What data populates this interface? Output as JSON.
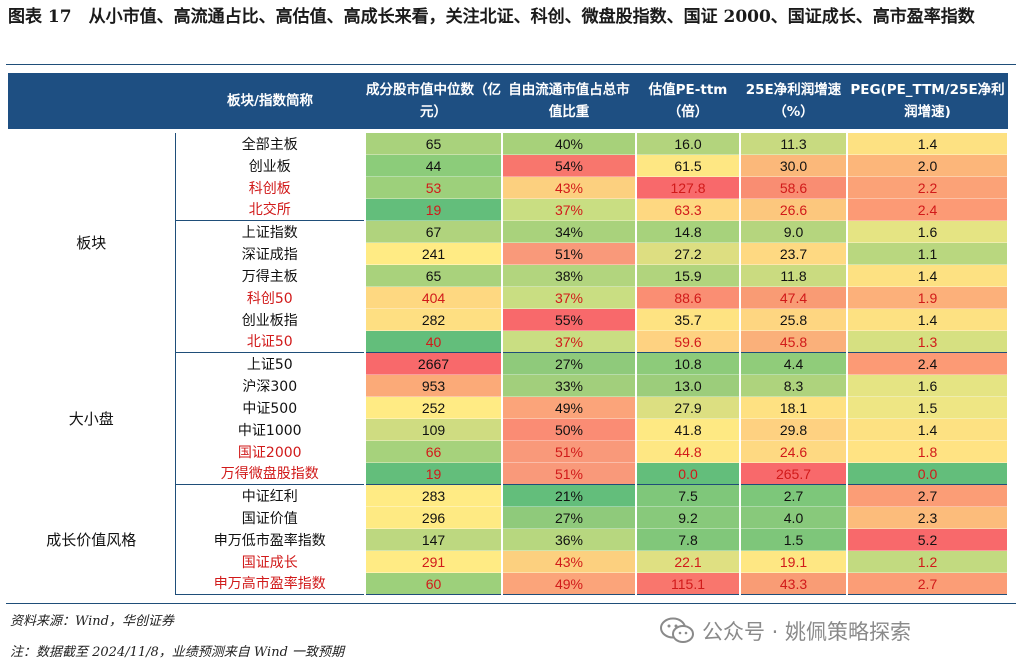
{
  "title": "图表 17　从小市值、高流通占比、高估值、高成长来看，关注北证、科创、微盘股指数、国证 2000、国证成长、高市盈率指数",
  "headers": [
    "",
    "板块/指数简称",
    "成分股市值中位数（亿元）",
    "自由流通市值占总市值比重",
    "估值PE-ttm（倍）",
    "25E净利润增速（%）",
    "PEG(PE_TTM/25E净利润增速)"
  ],
  "groups": [
    {
      "name": "板块",
      "rows": [
        {
          "name": "全部主板",
          "red": false,
          "mcap": "65",
          "float": "40%",
          "pe": "16.0",
          "growth": "11.3",
          "peg": "1.4"
        },
        {
          "name": "创业板",
          "red": false,
          "mcap": "44",
          "float": "54%",
          "pe": "61.5",
          "growth": "30.0",
          "peg": "2.0"
        },
        {
          "name": "科创板",
          "red": true,
          "mcap": "53",
          "float": "43%",
          "pe": "127.8",
          "growth": "58.6",
          "peg": "2.2"
        },
        {
          "name": "北交所",
          "red": true,
          "mcap": "19",
          "float": "37%",
          "pe": "63.3",
          "growth": "26.6",
          "peg": "2.4"
        },
        {
          "name": "上证指数",
          "red": false,
          "mcap": "67",
          "float": "34%",
          "pe": "14.8",
          "growth": "9.0",
          "peg": "1.6"
        },
        {
          "name": "深证成指",
          "red": false,
          "mcap": "241",
          "float": "51%",
          "pe": "27.2",
          "growth": "23.7",
          "peg": "1.1"
        },
        {
          "name": "万得主板",
          "red": false,
          "mcap": "65",
          "float": "38%",
          "pe": "15.9",
          "growth": "11.8",
          "peg": "1.4"
        },
        {
          "name": "科创50",
          "red": true,
          "mcap": "404",
          "float": "37%",
          "pe": "88.6",
          "growth": "47.4",
          "peg": "1.9"
        },
        {
          "name": "创业板指",
          "red": false,
          "mcap": "282",
          "float": "55%",
          "pe": "35.7",
          "growth": "25.8",
          "peg": "1.4"
        },
        {
          "name": "北证50",
          "red": true,
          "mcap": "40",
          "float": "37%",
          "pe": "59.6",
          "growth": "45.8",
          "peg": "1.3"
        }
      ]
    },
    {
      "name": "大小盘",
      "rows": [
        {
          "name": "上证50",
          "red": false,
          "mcap": "2667",
          "float": "27%",
          "pe": "10.8",
          "growth": "4.4",
          "peg": "2.4"
        },
        {
          "name": "沪深300",
          "red": false,
          "mcap": "953",
          "float": "33%",
          "pe": "13.0",
          "growth": "8.3",
          "peg": "1.6"
        },
        {
          "name": "中证500",
          "red": false,
          "mcap": "252",
          "float": "49%",
          "pe": "27.9",
          "growth": "18.1",
          "peg": "1.5"
        },
        {
          "name": "中证1000",
          "red": false,
          "mcap": "109",
          "float": "50%",
          "pe": "41.8",
          "growth": "29.8",
          "peg": "1.4"
        },
        {
          "name": "国证2000",
          "red": true,
          "mcap": "66",
          "float": "51%",
          "pe": "44.8",
          "growth": "24.6",
          "peg": "1.8"
        },
        {
          "name": "万得微盘股指数",
          "red": true,
          "mcap": "19",
          "float": "51%",
          "pe": "0.0",
          "growth": "265.7",
          "peg": "0.0"
        }
      ]
    },
    {
      "name": "成长价值风格",
      "rows": [
        {
          "name": "中证红利",
          "red": false,
          "mcap": "283",
          "float": "21%",
          "pe": "7.5",
          "growth": "2.7",
          "peg": "2.7"
        },
        {
          "name": "国证价值",
          "red": false,
          "mcap": "296",
          "float": "27%",
          "pe": "9.2",
          "growth": "4.0",
          "peg": "2.3"
        },
        {
          "name": "申万低市盈率指数",
          "red": false,
          "mcap": "147",
          "float": "36%",
          "pe": "7.8",
          "growth": "1.5",
          "peg": "5.2"
        },
        {
          "name": "国证成长",
          "red": true,
          "mcap": "291",
          "float": "43%",
          "pe": "22.1",
          "growth": "19.1",
          "peg": "1.2"
        },
        {
          "name": "申万高市盈率指数",
          "red": true,
          "mcap": "60",
          "float": "49%",
          "pe": "115.1",
          "growth": "43.3",
          "peg": "2.7"
        }
      ]
    }
  ],
  "cell_colors": {
    "全部主板": [
      "#a9d27c",
      "#a7d17a",
      "#b3d47d",
      "#c8da80",
      "#fde182"
    ],
    "创业板": [
      "#8ccc7a",
      "#f8766d",
      "#fee783",
      "#fbb87a",
      "#fcb67a"
    ],
    "科创板": [
      "#9dd07b",
      "#fcd07f",
      "#f8696b",
      "#f98d72",
      "#fba277"
    ],
    "北交所": [
      "#63be7b",
      "#c9de82",
      "#fed881",
      "#fcc77d",
      "#fc9a75"
    ],
    "上证指数": [
      "#b0d37d",
      "#a9d27c",
      "#a7d27c",
      "#b5d57e",
      "#e5e483"
    ],
    "深证成指": [
      "#ffeb84",
      "#f9997a",
      "#ddde81",
      "#fed982",
      "#b9d77f"
    ],
    "万得主板": [
      "#a9d27c",
      "#b2d57e",
      "#b1d47d",
      "#cadb80",
      "#fde182"
    ],
    "科创50": [
      "#fed881",
      "#c9de82",
      "#fa8e73",
      "#f99b74",
      "#fcb07a"
    ],
    "创业板指": [
      "#fedf82",
      "#f8696b",
      "#fee382",
      "#fed681",
      "#fde182"
    ],
    "北证50": [
      "#63be7b",
      "#c9de82",
      "#fed281",
      "#fab07a",
      "#d6e081"
    ],
    "上证50": [
      "#f8696b",
      "#8fca7b",
      "#8dcb7a",
      "#90cc7a",
      "#fc9a75"
    ],
    "沪深300": [
      "#fbaa78",
      "#a2cf7c",
      "#9ccd7b",
      "#aed37d",
      "#e5e483"
    ],
    "中证500": [
      "#ffeb84",
      "#fba47a",
      "#dcdf81",
      "#fee182",
      "#eee684"
    ],
    "中证1000": [
      "#cfdc81",
      "#fa8c74",
      "#fee983",
      "#fed181",
      "#fde182"
    ],
    "国证2000": [
      "#a6d27c",
      "#f9997a",
      "#fee783",
      "#fed982",
      "#ffe383"
    ],
    "万得微盘股指数": [
      "#63be7b",
      "#f9997a",
      "#63be7b",
      "#f8696b",
      "#63be7b"
    ],
    "中证红利": [
      "#ffeb84",
      "#63be7b",
      "#7fc77a",
      "#7dc77a",
      "#fb9d76"
    ],
    "国证价值": [
      "#feea83",
      "#8fca7b",
      "#88c97b",
      "#88c97b",
      "#fcbc7b"
    ],
    "申万低市盈率指数": [
      "#bdd880",
      "#b7d77f",
      "#81c77a",
      "#7ec67a",
      "#f8696b"
    ],
    "国证成长": [
      "#ffeb84",
      "#fcd07f",
      "#dfe082",
      "#fee783",
      "#c2da80"
    ],
    "申万高市盈率指数": [
      "#9dd07b",
      "#fba47a",
      "#f9766d",
      "#f99c75",
      "#fb9d76"
    ]
  },
  "footnotes": {
    "source": "资料来源：Wind，华创证券",
    "note": "注：数据截至 2024/11/8，业绩预测来自 Wind 一致预期"
  },
  "watermark": "公众号 · 姚佩策略探索"
}
